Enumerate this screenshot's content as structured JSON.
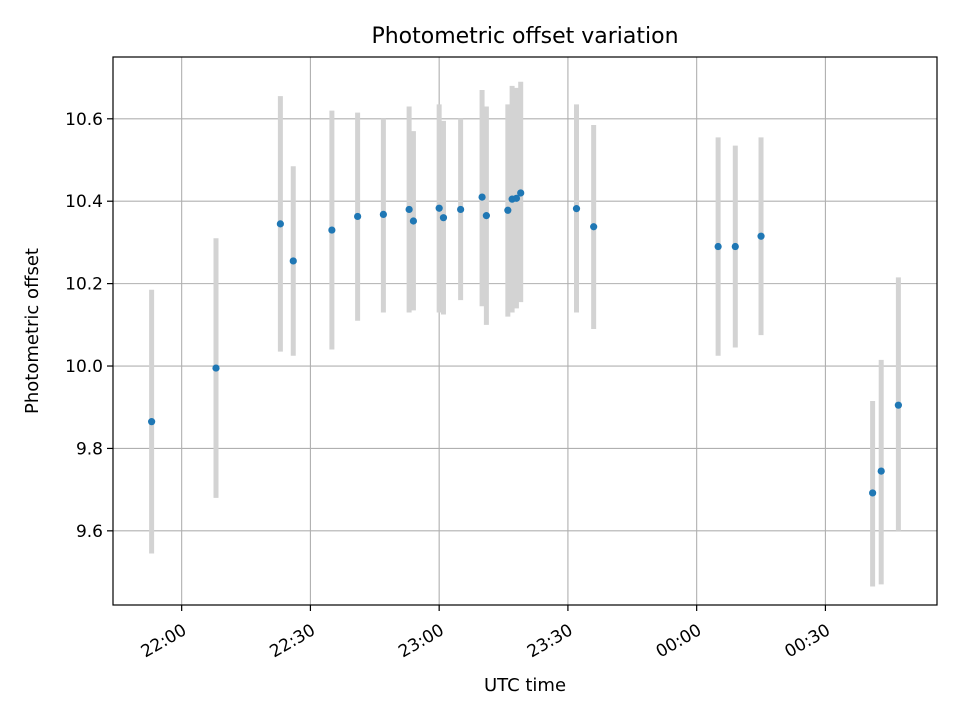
{
  "chart_data": {
    "type": "scatter",
    "title": "Photometric offset variation",
    "xlabel": "UTC time",
    "ylabel": "Photometric offset",
    "x_unit": "UTC (HH:MM)",
    "xlim": [
      "21:44",
      "00:56"
    ],
    "ylim": [
      9.42,
      10.75
    ],
    "x_ticks": [
      "22:00",
      "22:30",
      "23:00",
      "23:30",
      "00:00",
      "00:30"
    ],
    "y_ticks": [
      9.6,
      9.8,
      10.0,
      10.2,
      10.4,
      10.6
    ],
    "grid": true,
    "marker_color": "#1f77b4",
    "errorbar_color": "#d3d3d3",
    "points": [
      {
        "x": "21:53",
        "y": 9.865,
        "ylow": 9.545,
        "yhigh": 10.185
      },
      {
        "x": "22:08",
        "y": 9.995,
        "ylow": 9.68,
        "yhigh": 10.31
      },
      {
        "x": "22:23",
        "y": 10.345,
        "ylow": 10.035,
        "yhigh": 10.655
      },
      {
        "x": "22:26",
        "y": 10.255,
        "ylow": 10.025,
        "yhigh": 10.485
      },
      {
        "x": "22:35",
        "y": 10.33,
        "ylow": 10.04,
        "yhigh": 10.62
      },
      {
        "x": "22:41",
        "y": 10.363,
        "ylow": 10.11,
        "yhigh": 10.615
      },
      {
        "x": "22:47",
        "y": 10.368,
        "ylow": 10.13,
        "yhigh": 10.6
      },
      {
        "x": "22:53",
        "y": 10.38,
        "ylow": 10.13,
        "yhigh": 10.63
      },
      {
        "x": "22:54",
        "y": 10.352,
        "ylow": 10.135,
        "yhigh": 10.57
      },
      {
        "x": "23:00",
        "y": 10.383,
        "ylow": 10.13,
        "yhigh": 10.635
      },
      {
        "x": "23:01",
        "y": 10.36,
        "ylow": 10.125,
        "yhigh": 10.595
      },
      {
        "x": "23:05",
        "y": 10.38,
        "ylow": 10.16,
        "yhigh": 10.6
      },
      {
        "x": "23:10",
        "y": 10.41,
        "ylow": 10.145,
        "yhigh": 10.67
      },
      {
        "x": "23:11",
        "y": 10.365,
        "ylow": 10.1,
        "yhigh": 10.63
      },
      {
        "x": "23:16",
        "y": 10.378,
        "ylow": 10.12,
        "yhigh": 10.635
      },
      {
        "x": "23:17",
        "y": 10.405,
        "ylow": 10.13,
        "yhigh": 10.68
      },
      {
        "x": "23:18",
        "y": 10.407,
        "ylow": 10.14,
        "yhigh": 10.675
      },
      {
        "x": "23:19",
        "y": 10.42,
        "ylow": 10.155,
        "yhigh": 10.69
      },
      {
        "x": "23:32",
        "y": 10.382,
        "ylow": 10.13,
        "yhigh": 10.635
      },
      {
        "x": "23:36",
        "y": 10.338,
        "ylow": 10.09,
        "yhigh": 10.585
      },
      {
        "x": "00:05",
        "y": 10.29,
        "ylow": 10.025,
        "yhigh": 10.555
      },
      {
        "x": "00:09",
        "y": 10.29,
        "ylow": 10.045,
        "yhigh": 10.535
      },
      {
        "x": "00:15",
        "y": 10.315,
        "ylow": 10.075,
        "yhigh": 10.555
      },
      {
        "x": "00:41",
        "y": 9.692,
        "ylow": 9.465,
        "yhigh": 9.915
      },
      {
        "x": "00:43",
        "y": 9.745,
        "ylow": 9.47,
        "yhigh": 10.015
      },
      {
        "x": "00:47",
        "y": 9.905,
        "ylow": 9.6,
        "yhigh": 10.215
      }
    ]
  }
}
